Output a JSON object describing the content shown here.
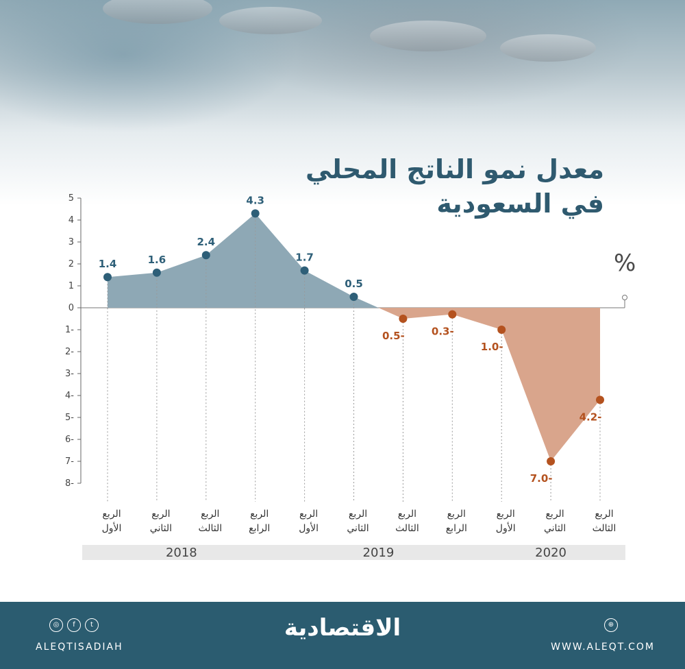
{
  "title_lines": [
    "معدل نمو الناتج المحلي",
    "في السعودية"
  ],
  "unit": "%",
  "brand": "الاقتصادية",
  "footer": {
    "handle": "ALEQTISADIAH",
    "website": "WWW.ALEQT.COM",
    "icons": [
      "instagram-icon",
      "facebook-icon",
      "twitter-icon",
      "web-icon"
    ]
  },
  "colors": {
    "positive": "#2e5f78",
    "positive_fill": "#8ea8b5",
    "negative": "#b4521f",
    "negative_fill": "#d9a58c",
    "footer": "#2b5c70",
    "title": "#2f5a6f"
  },
  "chart_data": {
    "type": "area",
    "ylim": [
      -8,
      5
    ],
    "yticks": [
      "5",
      "4",
      "3",
      "2",
      "1",
      "0",
      "-1",
      "-2",
      "-3",
      "-4",
      "-5",
      "-6",
      "-7",
      "-8"
    ],
    "ytick_labels": [
      "5",
      "4",
      "3",
      "2",
      "1",
      "0",
      "1-",
      "2-",
      "3-",
      "4-",
      "5-",
      "6-",
      "7-",
      "8-"
    ],
    "categories": [
      [
        "الربع",
        "الأول"
      ],
      [
        "الربع",
        "الثاني"
      ],
      [
        "الربع",
        "الثالث"
      ],
      [
        "الربع",
        "الرابع"
      ],
      [
        "الربع",
        "الأول"
      ],
      [
        "الربع",
        "الثاني"
      ],
      [
        "الربع",
        "الثالث"
      ],
      [
        "الربع",
        "الرابع"
      ],
      [
        "الربع",
        "الأول"
      ],
      [
        "الربع",
        "الثاني"
      ],
      [
        "الربع",
        "الثالث"
      ]
    ],
    "values": [
      1.4,
      1.6,
      2.4,
      4.3,
      1.7,
      0.5,
      -0.5,
      -0.3,
      -1.0,
      -7.0,
      -4.2
    ],
    "value_labels": [
      "1.4",
      "1.6",
      "2.4",
      "4.3",
      "1.7",
      "0.5",
      "0.5-",
      "0.3-",
      "1.0-",
      "7.0-",
      "4.2-"
    ],
    "years": [
      {
        "label": "2018",
        "from": 0,
        "to": 3
      },
      {
        "label": "2019",
        "from": 4,
        "to": 7
      },
      {
        "label": "2020",
        "from": 8,
        "to": 10
      }
    ],
    "grid": false
  }
}
